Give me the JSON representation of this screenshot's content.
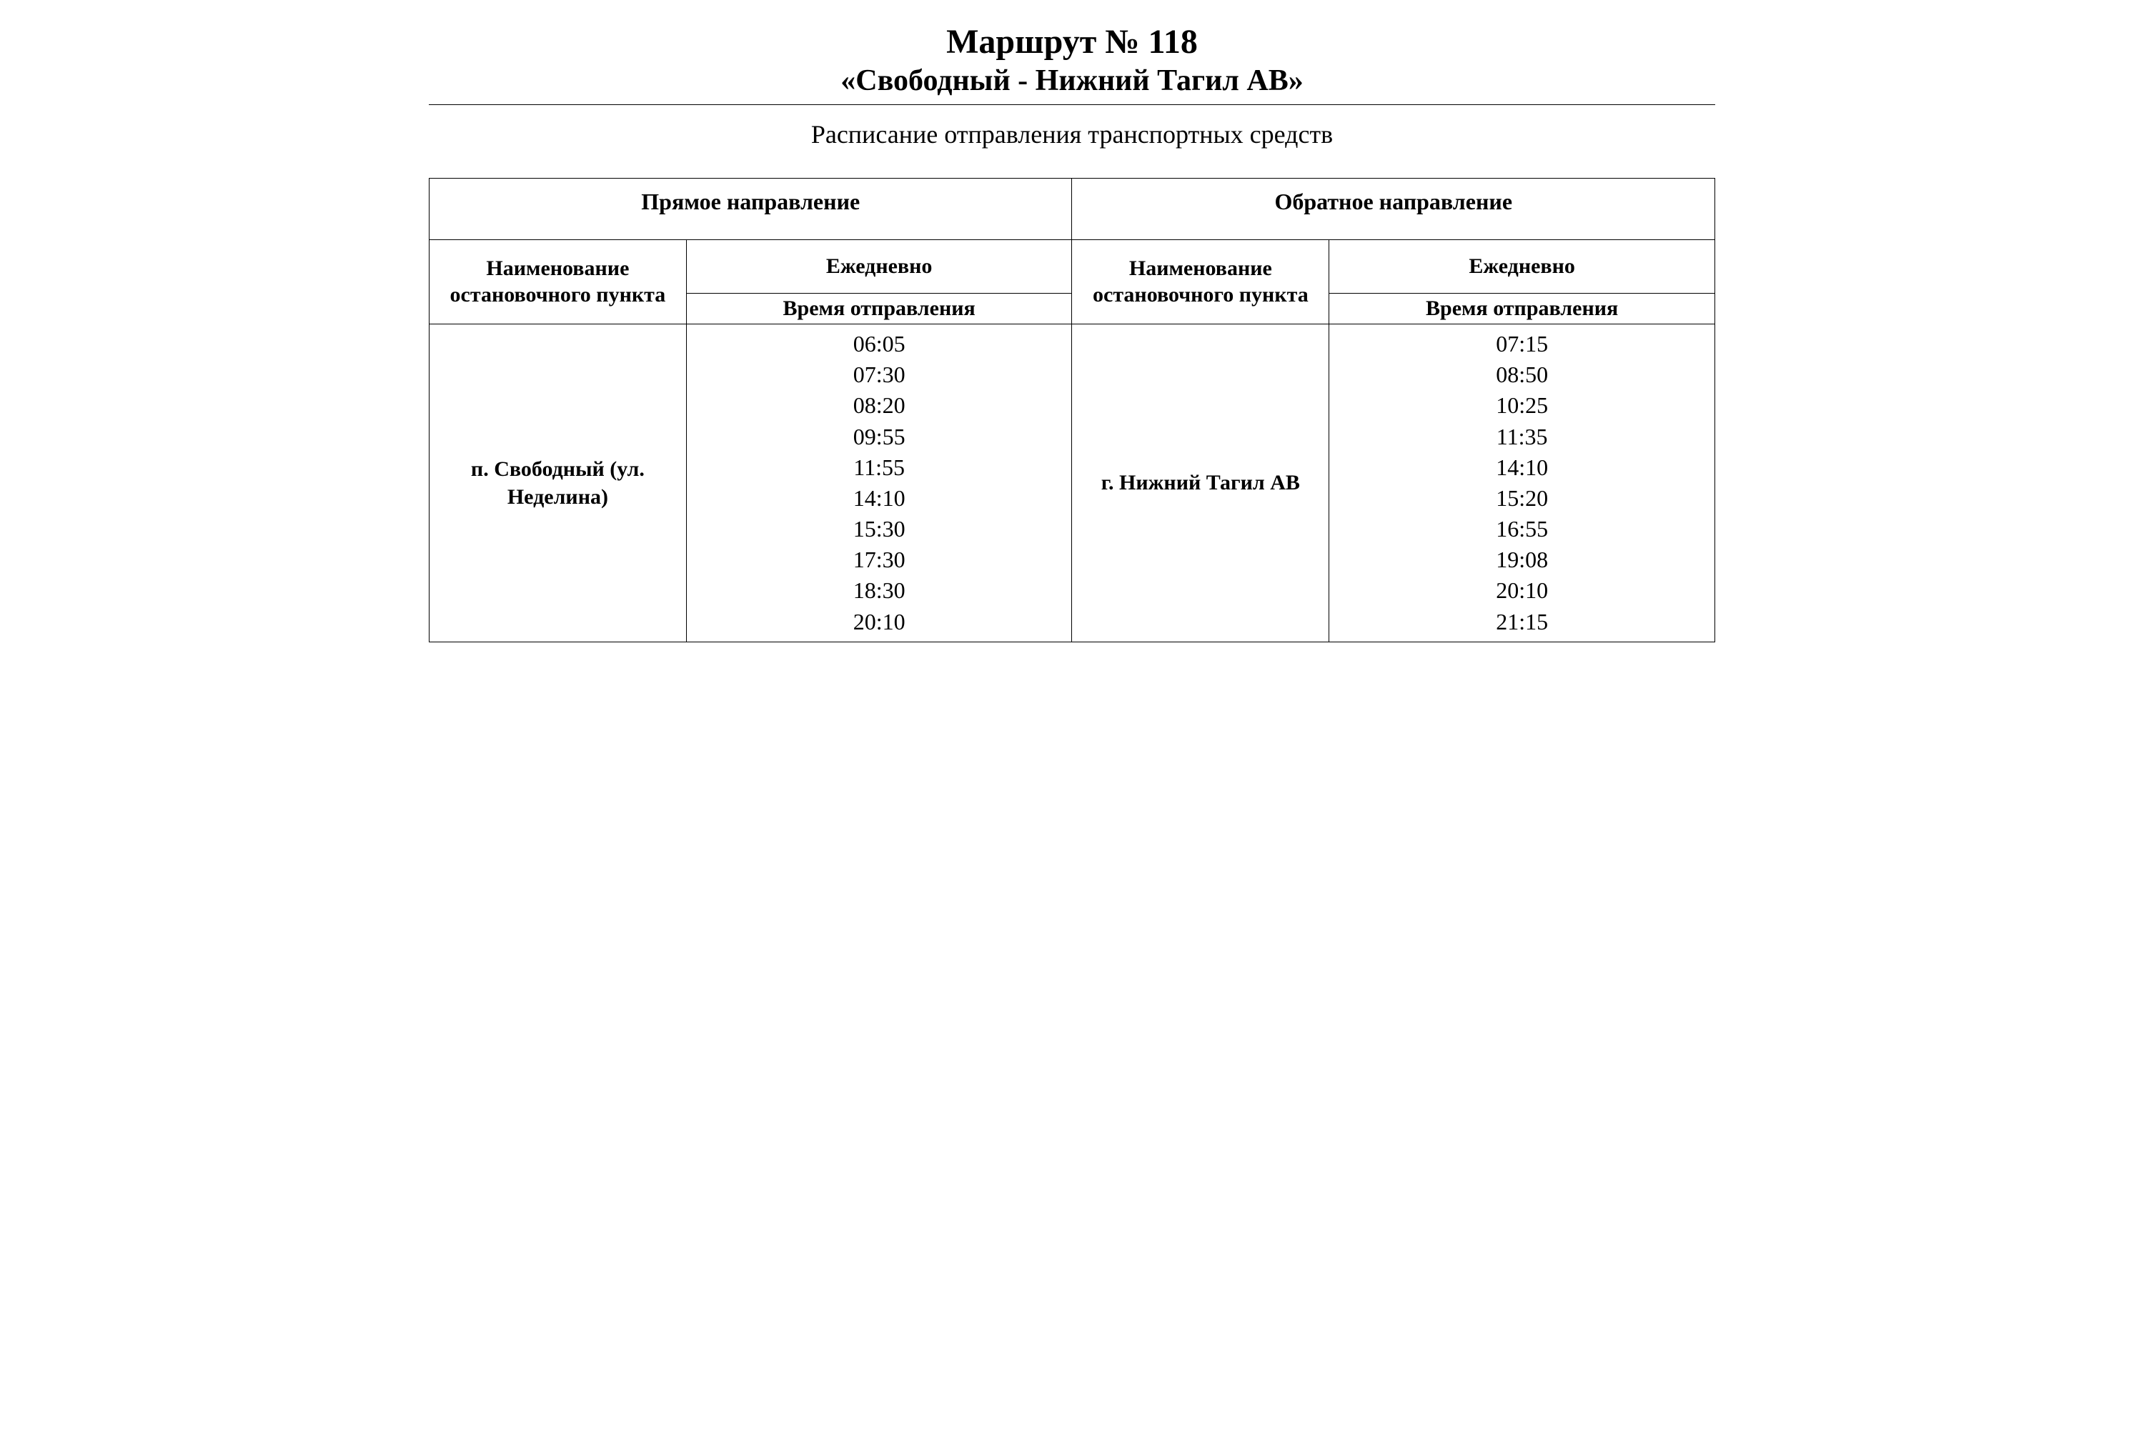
{
  "header": {
    "title_line1": "Маршрут № 118",
    "title_line2": "«Свободный - Нижний Тагил АВ»",
    "subtitle": "Расписание отправления транспортных средств"
  },
  "table": {
    "type": "table",
    "columns": [
      "stop_name",
      "times",
      "stop_name",
      "times"
    ],
    "column_widths_pct": [
      20,
      30,
      20,
      30
    ],
    "border_color": "#000000",
    "background_color": "#ffffff",
    "text_color": "#000000",
    "font_family": "Times New Roman",
    "header_fontsize": 30,
    "body_fontsize": 32,
    "direction_forward": "Прямое направление",
    "direction_reverse": "Обратное направление",
    "stop_header": "Наименование остановочного пункта",
    "frequency_header": "Ежедневно",
    "departure_time_header": "Время отправления",
    "forward": {
      "stop_name": "п. Свободный (ул. Неделина)",
      "times": [
        "06:05",
        "07:30",
        "08:20",
        "09:55",
        "11:55",
        "14:10",
        "15:30",
        "17:30",
        "18:30",
        "20:10"
      ]
    },
    "reverse": {
      "stop_name": "г. Нижний Тагил АВ",
      "times": [
        "07:15",
        "08:50",
        "10:25",
        "11:35",
        "14:10",
        "15:20",
        "16:55",
        "19:08",
        "20:10",
        "21:15"
      ]
    }
  }
}
